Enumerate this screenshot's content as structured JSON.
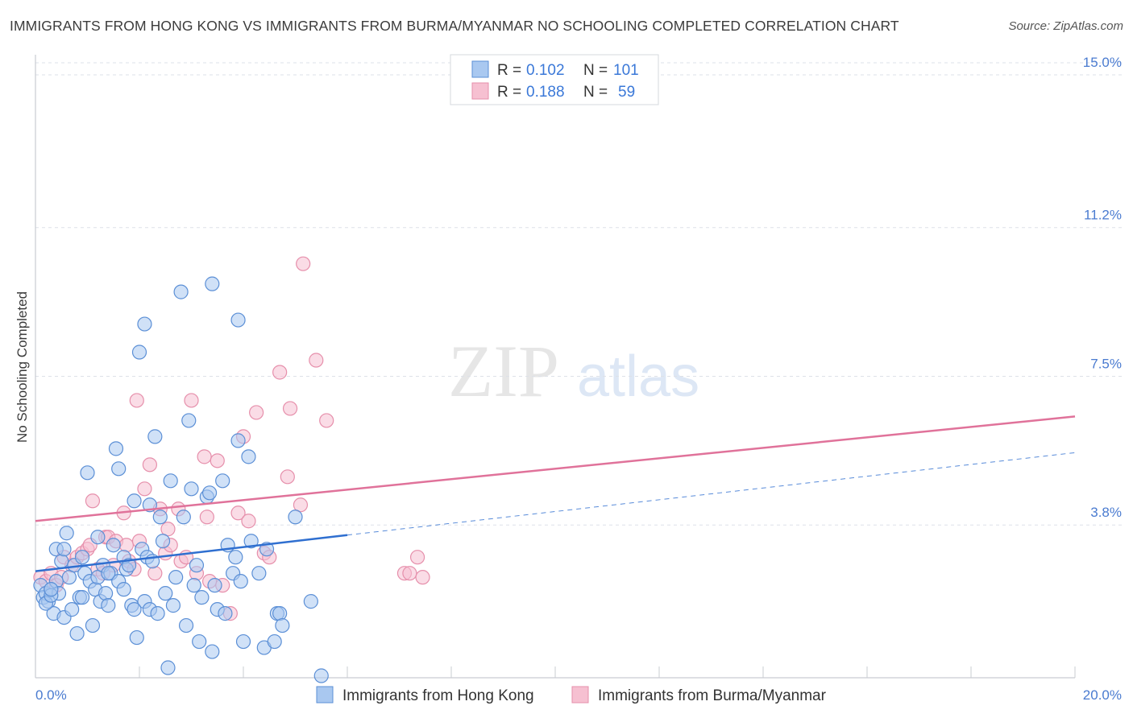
{
  "title": "IMMIGRANTS FROM HONG KONG VS IMMIGRANTS FROM BURMA/MYANMAR NO SCHOOLING COMPLETED CORRELATION CHART",
  "source": "Source: ZipAtlas.com",
  "colors": {
    "blue_fill": "#a9c8f0",
    "blue_stroke": "#5b8fd6",
    "blue_line": "#2f6fd0",
    "pink_fill": "#f6c0d1",
    "pink_stroke": "#e68fab",
    "pink_line": "#e0729a",
    "tick_text": "#4a7bd0",
    "grid": "#dde1e8"
  },
  "legend": {
    "rows": [
      {
        "r_label": "R =",
        "r_value": "0.102",
        "n_label": "N =",
        "n_value": "101"
      },
      {
        "r_label": "R =",
        "r_value": "0.188",
        "n_label": "N =",
        "n_value": "59"
      }
    ]
  },
  "chart_data": {
    "type": "scatter",
    "title": "IMMIGRANTS FROM HONG KONG VS IMMIGRANTS FROM BURMA/MYANMAR NO SCHOOLING COMPLETED CORRELATION CHART",
    "xlabel": "",
    "ylabel": "No Schooling Completed",
    "xlim": [
      0,
      20
    ],
    "ylim": [
      0,
      15.5
    ],
    "x_tick_labels": [
      "0.0%",
      "20.0%"
    ],
    "y_ticks": [
      3.8,
      7.5,
      11.2,
      15.0
    ],
    "y_tick_labels": [
      "3.8%",
      "7.5%",
      "11.2%",
      "15.0%"
    ],
    "grid": true,
    "legend_position": "top-center",
    "bottom_legend": [
      "Immigrants from Hong Kong",
      "Immigrants from Burma/Myanmar"
    ],
    "series": [
      {
        "name": "Immigrants from Hong Kong",
        "color": "#a9c8f0",
        "trend": {
          "x0": 0,
          "y0": 2.65,
          "x1": 6.0,
          "y1": 3.55,
          "dash_to_x": 20,
          "dash_to_y": 5.6
        },
        "points": [
          [
            0.1,
            2.3
          ],
          [
            0.15,
            2.0
          ],
          [
            0.2,
            2.1
          ],
          [
            0.25,
            1.9
          ],
          [
            0.3,
            2.2
          ],
          [
            0.35,
            1.6
          ],
          [
            0.4,
            2.4
          ],
          [
            0.45,
            2.1
          ],
          [
            0.2,
            1.85
          ],
          [
            0.3,
            2.05
          ],
          [
            0.4,
            3.2
          ],
          [
            0.5,
            2.9
          ],
          [
            0.55,
            1.5
          ],
          [
            0.6,
            3.6
          ],
          [
            0.65,
            2.5
          ],
          [
            0.7,
            1.7
          ],
          [
            0.75,
            2.8
          ],
          [
            0.8,
            1.1
          ],
          [
            0.85,
            2.0
          ],
          [
            0.9,
            3.0
          ],
          [
            0.95,
            2.6
          ],
          [
            1.0,
            5.1
          ],
          [
            1.05,
            2.4
          ],
          [
            1.1,
            1.3
          ],
          [
            1.15,
            2.2
          ],
          [
            1.2,
            2.5
          ],
          [
            1.25,
            1.9
          ],
          [
            1.3,
            2.8
          ],
          [
            1.35,
            2.1
          ],
          [
            1.4,
            1.8
          ],
          [
            1.45,
            2.6
          ],
          [
            1.5,
            3.3
          ],
          [
            1.55,
            5.7
          ],
          [
            1.6,
            5.2
          ],
          [
            1.6,
            2.4
          ],
          [
            1.7,
            3.0
          ],
          [
            1.75,
            2.7
          ],
          [
            1.8,
            2.8
          ],
          [
            1.85,
            1.8
          ],
          [
            1.9,
            4.4
          ],
          [
            1.95,
            1.0
          ],
          [
            2.0,
            8.1
          ],
          [
            2.05,
            3.2
          ],
          [
            2.1,
            1.9
          ],
          [
            2.15,
            3.0
          ],
          [
            2.2,
            1.7
          ],
          [
            2.25,
            2.9
          ],
          [
            2.3,
            6.0
          ],
          [
            2.35,
            1.6
          ],
          [
            2.4,
            4.0
          ],
          [
            2.45,
            3.4
          ],
          [
            2.5,
            2.1
          ],
          [
            2.55,
            0.25
          ],
          [
            2.6,
            4.9
          ],
          [
            2.65,
            1.8
          ],
          [
            2.7,
            2.5
          ],
          [
            2.8,
            9.6
          ],
          [
            2.85,
            4.0
          ],
          [
            2.9,
            1.3
          ],
          [
            2.95,
            6.4
          ],
          [
            3.0,
            4.7
          ],
          [
            3.05,
            2.3
          ],
          [
            3.1,
            2.8
          ],
          [
            3.15,
            0.9
          ],
          [
            3.2,
            2.0
          ],
          [
            3.3,
            4.5
          ],
          [
            3.35,
            4.6
          ],
          [
            3.4,
            0.65
          ],
          [
            3.45,
            2.3
          ],
          [
            3.5,
            1.7
          ],
          [
            3.6,
            4.9
          ],
          [
            3.65,
            1.6
          ],
          [
            3.7,
            3.3
          ],
          [
            3.8,
            2.6
          ],
          [
            3.85,
            3.0
          ],
          [
            3.9,
            5.9
          ],
          [
            3.95,
            2.4
          ],
          [
            4.0,
            0.9
          ],
          [
            4.1,
            5.5
          ],
          [
            4.15,
            3.4
          ],
          [
            4.3,
            2.6
          ],
          [
            4.4,
            0.75
          ],
          [
            4.45,
            3.2
          ],
          [
            4.6,
            0.9
          ],
          [
            4.65,
            1.6
          ],
          [
            4.7,
            1.6
          ],
          [
            4.75,
            1.3
          ],
          [
            5.0,
            4.0
          ],
          [
            5.3,
            1.9
          ],
          [
            5.5,
            0.05
          ],
          [
            3.4,
            9.8
          ],
          [
            3.9,
            8.9
          ],
          [
            2.1,
            8.8
          ],
          [
            1.9,
            1.7
          ],
          [
            1.2,
            3.5
          ],
          [
            0.55,
            3.2
          ],
          [
            1.7,
            2.2
          ],
          [
            0.9,
            2.0
          ],
          [
            0.3,
            2.2
          ],
          [
            1.4,
            2.6
          ],
          [
            2.2,
            4.3
          ]
        ]
      },
      {
        "name": "Immigrants from Burma/Myanmar",
        "color": "#f6c0d1",
        "trend": {
          "x0": 0,
          "y0": 3.9,
          "x1": 20,
          "y1": 6.5
        },
        "points": [
          [
            0.1,
            2.5
          ],
          [
            0.2,
            2.4
          ],
          [
            0.3,
            2.6
          ],
          [
            0.4,
            2.3
          ],
          [
            0.5,
            2.5
          ],
          [
            0.55,
            3.0
          ],
          [
            0.7,
            2.8
          ],
          [
            0.8,
            3.0
          ],
          [
            0.9,
            3.1
          ],
          [
            1.0,
            3.2
          ],
          [
            1.05,
            3.3
          ],
          [
            1.1,
            4.4
          ],
          [
            1.2,
            2.7
          ],
          [
            1.3,
            2.6
          ],
          [
            1.35,
            3.5
          ],
          [
            1.4,
            3.5
          ],
          [
            1.5,
            2.8
          ],
          [
            1.55,
            3.4
          ],
          [
            1.7,
            4.1
          ],
          [
            1.75,
            3.3
          ],
          [
            1.8,
            2.9
          ],
          [
            1.9,
            2.7
          ],
          [
            1.95,
            6.9
          ],
          [
            2.0,
            3.4
          ],
          [
            2.1,
            4.7
          ],
          [
            2.2,
            5.3
          ],
          [
            2.3,
            2.6
          ],
          [
            2.4,
            4.2
          ],
          [
            2.5,
            3.1
          ],
          [
            2.55,
            3.7
          ],
          [
            2.6,
            3.3
          ],
          [
            2.75,
            4.2
          ],
          [
            2.8,
            2.9
          ],
          [
            2.9,
            3.0
          ],
          [
            3.0,
            6.9
          ],
          [
            3.1,
            2.6
          ],
          [
            3.25,
            5.5
          ],
          [
            3.3,
            4.0
          ],
          [
            3.35,
            2.4
          ],
          [
            3.5,
            5.4
          ],
          [
            3.6,
            2.3
          ],
          [
            3.75,
            1.6
          ],
          [
            3.9,
            4.1
          ],
          [
            4.0,
            6.0
          ],
          [
            4.1,
            3.9
          ],
          [
            4.25,
            6.6
          ],
          [
            4.4,
            3.1
          ],
          [
            4.5,
            3.0
          ],
          [
            4.7,
            7.6
          ],
          [
            4.85,
            5.0
          ],
          [
            4.9,
            6.7
          ],
          [
            5.1,
            4.3
          ],
          [
            5.15,
            10.3
          ],
          [
            5.4,
            7.9
          ],
          [
            5.6,
            6.4
          ],
          [
            7.1,
            2.6
          ],
          [
            7.2,
            2.6
          ],
          [
            7.35,
            3.0
          ],
          [
            7.45,
            2.5
          ]
        ]
      }
    ]
  }
}
